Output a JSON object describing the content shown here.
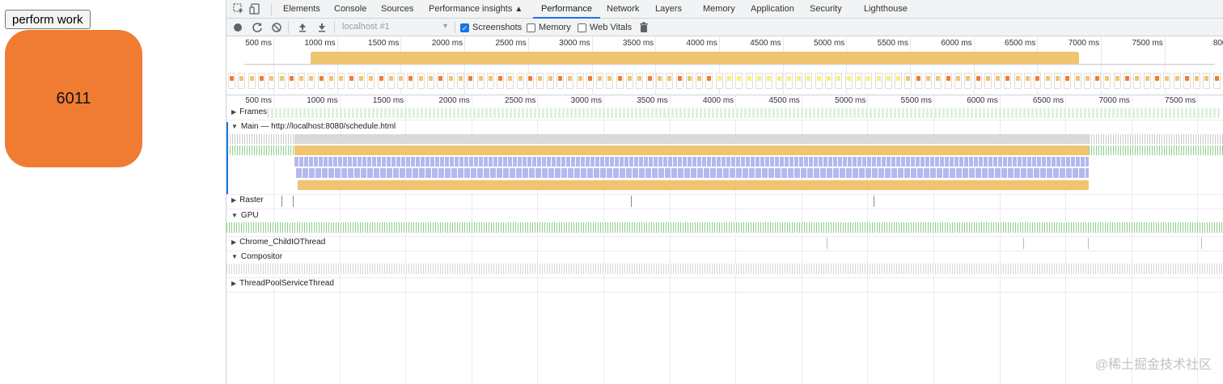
{
  "page": {
    "button_label": "perform work",
    "counter_value": "6011",
    "box_color": "#f07c34"
  },
  "devtools": {
    "inspect_icon": "element-picker-icon",
    "device_icon": "device-toolbar-icon",
    "tabs": [
      {
        "label": "Elements",
        "active": false
      },
      {
        "label": "Console",
        "active": false
      },
      {
        "label": "Sources",
        "active": false
      },
      {
        "label": "Performance insights",
        "active": false
      },
      {
        "label": "Performance",
        "active": true
      },
      {
        "label": "Network",
        "active": false
      },
      {
        "label": "Layers",
        "active": false
      },
      {
        "label": "Memory",
        "active": false
      },
      {
        "label": "Application",
        "active": false
      },
      {
        "label": "Security",
        "active": false
      },
      {
        "label": "Lighthouse",
        "active": false
      }
    ],
    "insights_badge_icon": "flask-icon",
    "accent_color": "#1a73e8"
  },
  "toolbar": {
    "record_icon": "record-icon",
    "reload_icon": "reload-icon",
    "clear_icon": "clear-icon",
    "upload_icon": "upload-icon",
    "download_icon": "download-icon",
    "target": "localhost #1",
    "screenshots_label": "Screenshots",
    "screenshots_checked": true,
    "memory_label": "Memory",
    "memory_checked": false,
    "webvitals_label": "Web Vitals",
    "webvitals_checked": false,
    "trash_icon": "trash-icon"
  },
  "timeline": {
    "overview_ticks": [
      "500 ms",
      "1000 ms",
      "1500 ms",
      "2000 ms",
      "2500 ms",
      "3000 ms",
      "3500 ms",
      "4000 ms",
      "4500 ms",
      "5000 ms",
      "5500 ms",
      "6000 ms",
      "6500 ms",
      "7000 ms",
      "7500 ms",
      "800"
    ],
    "main_ticks": [
      "500 ms",
      "1000 ms",
      "1500 ms",
      "2000 ms",
      "2500 ms",
      "3000 ms",
      "3500 ms",
      "4000 ms",
      "4500 ms",
      "5000 ms",
      "5500 ms",
      "6000 ms",
      "6500 ms",
      "7000 ms",
      "7500 ms"
    ],
    "tracks": {
      "frames": "Frames",
      "main": "Main — http://localhost:8080/schedule.html",
      "raster": "Raster",
      "gpu": "GPU",
      "childio": "Chrome_ChildIOThread",
      "compositor": "Compositor",
      "threadpool": "ThreadPoolServiceThread"
    },
    "colors": {
      "scripting": "#f0c470",
      "rendering": "#b4b8f0",
      "painting": "#8fce8b",
      "idle": "#c9c9c9"
    }
  },
  "watermark": "@稀土掘金技术社区"
}
